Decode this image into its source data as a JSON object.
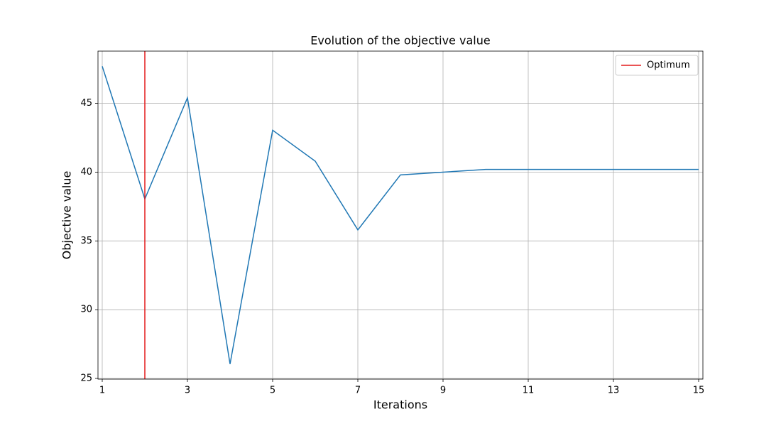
{
  "chart_data": {
    "type": "line",
    "title": "Evolution of the objective value",
    "x_label": "Iterations",
    "y_label": "Objective value",
    "x": [
      1,
      2,
      3,
      4,
      5,
      6,
      7,
      8,
      9,
      10,
      11,
      12,
      13,
      14,
      15
    ],
    "series": [
      {
        "color": "#1f77b4",
        "values": [
          47.7,
          38.05,
          45.4,
          26.05,
          43.05,
          40.8,
          35.8,
          39.8,
          40.0,
          40.2,
          40.2,
          40.2,
          40.2,
          40.2,
          40.2
        ]
      }
    ],
    "vlines": [
      {
        "name": "Optimum",
        "x": 2,
        "color": "#e41a1c"
      }
    ],
    "xlim": [
      0.9,
      15.1
    ],
    "ylim": [
      24.95,
      48.8
    ],
    "xticks": [
      1,
      3,
      5,
      7,
      9,
      11,
      13,
      15
    ],
    "yticks": [
      25,
      30,
      35,
      40,
      45
    ],
    "grid": true,
    "legend": "upper right"
  }
}
